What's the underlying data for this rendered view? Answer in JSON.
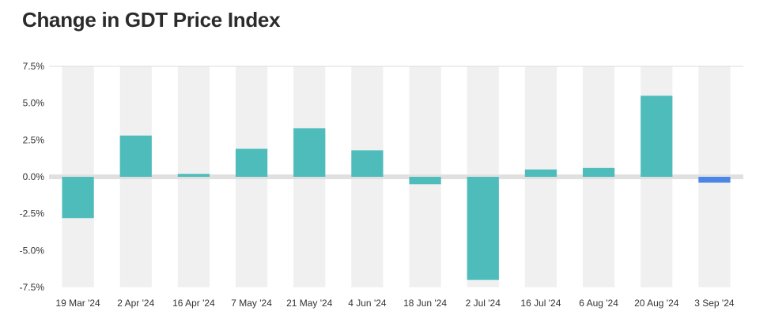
{
  "chart_data": {
    "type": "bar",
    "title": "Change in GDT Price Index",
    "xlabel": "",
    "ylabel": "",
    "categories": [
      "19 Mar '24",
      "2 Apr '24",
      "16 Apr '24",
      "7 May '24",
      "21 May '24",
      "4 Jun '24",
      "18 Jun '24",
      "2 Jul '24",
      "16 Jul '24",
      "6 Aug '24",
      "20 Aug '24",
      "3 Sep '24"
    ],
    "values": [
      -2.8,
      2.8,
      0.2,
      1.9,
      3.3,
      1.8,
      -0.5,
      -7.0,
      0.5,
      0.6,
      5.5,
      -0.4
    ],
    "ylim": [
      -7.5,
      7.5
    ],
    "yticks": [
      7.5,
      5.0,
      2.5,
      0.0,
      -2.5,
      -5.0,
      -7.5
    ],
    "ytick_labels": [
      "7.5%",
      "5.0%",
      "2.5%",
      "0.0%",
      "-2.5%",
      "-5.0%",
      "-7.5%"
    ],
    "grid": true,
    "legend": "none",
    "colors": {
      "bar": "#4fbcbc",
      "highlight_bar": "#4a86e8",
      "band": "#f0f0f0",
      "zero_line": "#e0e0e0",
      "top_line": "#dddddd"
    },
    "highlight_index": 11
  }
}
